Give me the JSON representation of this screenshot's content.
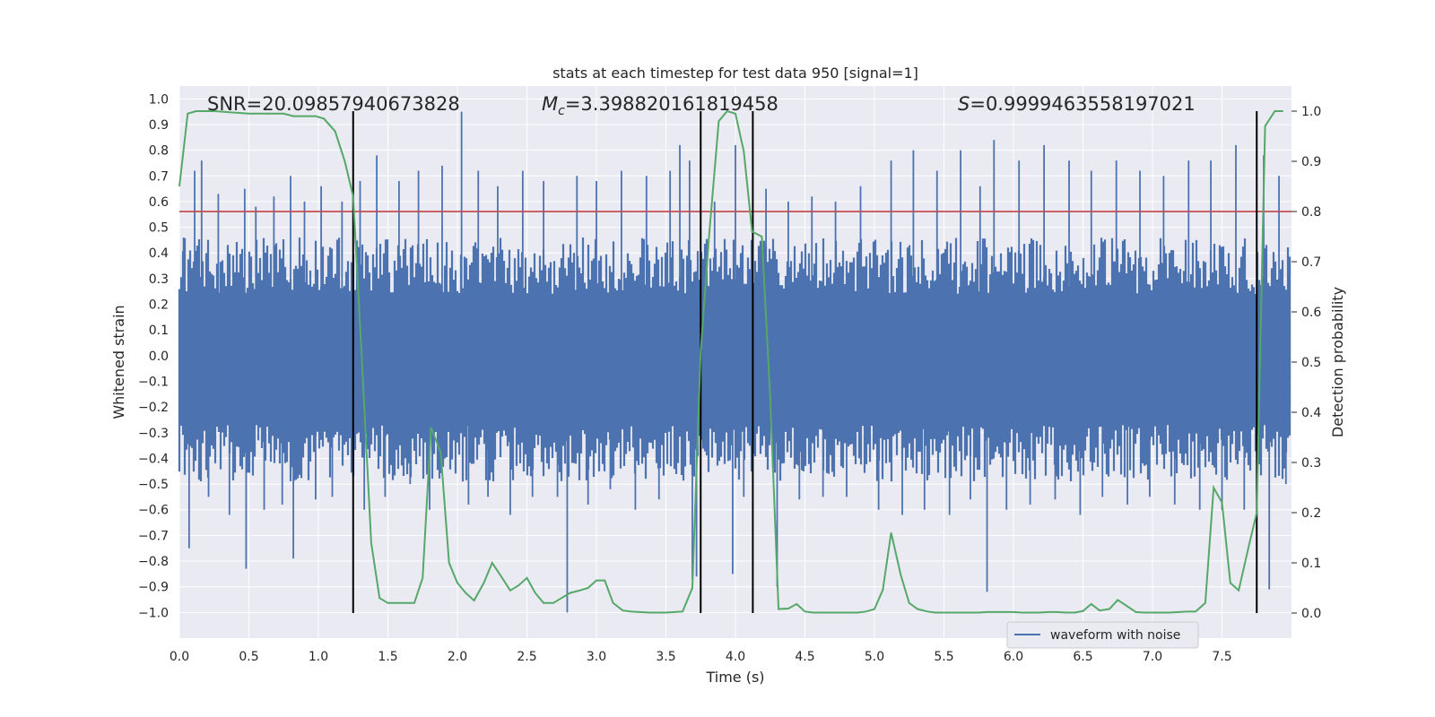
{
  "chart_data": {
    "type": "line",
    "title": "stats at each timestep for test data 950 [signal=1]",
    "xlabel": "Time (s)",
    "ylabel": "Whitened strain",
    "y2label": "Detection probability",
    "xlim": [
      0,
      8
    ],
    "ylim": [
      -1.1,
      1.05
    ],
    "y2lim": [
      -0.05,
      1.05
    ],
    "x_ticks": [
      0.0,
      0.5,
      1.0,
      1.5,
      2.0,
      2.5,
      3.0,
      3.5,
      4.0,
      4.5,
      5.0,
      5.5,
      6.0,
      6.5,
      7.0,
      7.5
    ],
    "x_tick_labels": [
      "0.0",
      "0.5",
      "1.0",
      "1.5",
      "2.0",
      "2.5",
      "3.0",
      "3.5",
      "4.0",
      "4.5",
      "5.0",
      "5.5",
      "6.0",
      "6.5",
      "7.0",
      "7.5"
    ],
    "y_ticks": [
      1.0,
      0.9,
      0.8,
      0.7,
      0.6,
      0.5,
      0.4,
      0.3,
      0.2,
      0.1,
      0.0,
      -0.1,
      -0.2,
      -0.3,
      -0.4,
      -0.5,
      -0.6,
      -0.7,
      -0.8,
      -0.9,
      -1.0
    ],
    "y_tick_labels": [
      "1.0",
      "0.9",
      "0.8",
      "0.7",
      "0.6",
      "0.5",
      "0.4",
      "0.3",
      "0.2",
      "0.1",
      "0.0",
      "−0.1",
      "−0.2",
      "−0.3",
      "−0.4",
      "−0.5",
      "−0.6",
      "−0.7",
      "−0.8",
      "−0.9",
      "−1.0"
    ],
    "y2_ticks": [
      0.0,
      0.1,
      0.2,
      0.3,
      0.4,
      0.5,
      0.6,
      0.7,
      0.8,
      0.9,
      1.0
    ],
    "y2_tick_labels": [
      "0.0",
      "0.1",
      "0.2",
      "0.3",
      "0.4",
      "0.5",
      "0.6",
      "0.7",
      "0.8",
      "0.9",
      "1.0"
    ],
    "grid": true,
    "annotations": {
      "snr": "SNR=20.09857940673828",
      "mc_symbol": "M",
      "mc_sub": "c",
      "mc_value": "=3.398820161819458",
      "s_symbol": "S",
      "s_value": "=0.9999463558197021"
    },
    "threshold": {
      "y2": 0.8,
      "color": "#c44e52"
    },
    "vlines_x": [
      1.25,
      3.75,
      4.125,
      7.75
    ],
    "vline_y2_range": [
      0.0,
      1.0
    ],
    "legend": {
      "placement": "lower-right",
      "entries": [
        "waveform with noise"
      ]
    },
    "colors": {
      "waveform": "#4c72b0",
      "probability": "#55a868",
      "vlines": "#000000",
      "background": "#eaeaf2",
      "grid": "#ffffff"
    },
    "waveform": {
      "name": "waveform with noise",
      "envelope": {
        "upper_mean": 0.35,
        "lower_mean": -0.38
      },
      "spikes": [
        [
          0.03,
          0.46
        ],
        [
          0.07,
          -0.75
        ],
        [
          0.11,
          0.72
        ],
        [
          0.16,
          0.76
        ],
        [
          0.21,
          -0.55
        ],
        [
          0.28,
          0.63
        ],
        [
          0.36,
          -0.62
        ],
        [
          0.47,
          0.65
        ],
        [
          0.48,
          -0.83
        ],
        [
          0.55,
          0.58
        ],
        [
          0.61,
          -0.6
        ],
        [
          0.68,
          0.62
        ],
        [
          0.74,
          -0.58
        ],
        [
          0.8,
          0.7
        ],
        [
          0.82,
          -0.79
        ],
        [
          0.9,
          0.6
        ],
        [
          0.98,
          -0.56
        ],
        [
          1.02,
          0.66
        ],
        [
          1.1,
          -0.55
        ],
        [
          1.17,
          0.6
        ],
        [
          1.3,
          0.68
        ],
        [
          1.33,
          -0.6
        ],
        [
          1.42,
          0.78
        ],
        [
          1.48,
          -0.55
        ],
        [
          1.58,
          0.68
        ],
        [
          1.66,
          -0.5
        ],
        [
          1.72,
          0.72
        ],
        [
          1.8,
          -0.6
        ],
        [
          1.89,
          0.74
        ],
        [
          2.03,
          0.95
        ],
        [
          2.08,
          -0.58
        ],
        [
          2.15,
          0.72
        ],
        [
          2.22,
          -0.55
        ],
        [
          2.29,
          0.66
        ],
        [
          2.38,
          -0.62
        ],
        [
          2.47,
          0.72
        ],
        [
          2.54,
          -0.55
        ],
        [
          2.62,
          0.68
        ],
        [
          2.72,
          -0.55
        ],
        [
          2.79,
          -1.0
        ],
        [
          2.86,
          0.7
        ],
        [
          2.94,
          -0.58
        ],
        [
          3.0,
          0.68
        ],
        [
          3.1,
          -0.52
        ],
        [
          3.18,
          0.72
        ],
        [
          3.28,
          -0.6
        ],
        [
          3.36,
          0.7
        ],
        [
          3.45,
          -0.56
        ],
        [
          3.53,
          0.72
        ],
        [
          3.6,
          0.82
        ],
        [
          3.67,
          0.76
        ],
        [
          3.69,
          -0.87
        ],
        [
          3.72,
          -0.86
        ],
        [
          3.85,
          0.6
        ],
        [
          3.98,
          -0.85
        ],
        [
          4.0,
          0.82
        ],
        [
          4.06,
          -0.55
        ],
        [
          4.22,
          0.65
        ],
        [
          4.3,
          -0.9
        ],
        [
          4.38,
          0.6
        ],
        [
          4.46,
          -0.56
        ],
        [
          4.55,
          0.62
        ],
        [
          4.63,
          -0.55
        ],
        [
          4.72,
          0.6
        ],
        [
          4.8,
          -0.55
        ],
        [
          4.9,
          0.66
        ],
        [
          5.03,
          -0.6
        ],
        [
          5.12,
          0.76
        ],
        [
          5.2,
          -0.62
        ],
        [
          5.28,
          0.8
        ],
        [
          5.36,
          -0.6
        ],
        [
          5.45,
          0.72
        ],
        [
          5.54,
          -0.62
        ],
        [
          5.62,
          0.8
        ],
        [
          5.69,
          -0.56
        ],
        [
          5.76,
          0.66
        ],
        [
          5.81,
          -0.92
        ],
        [
          5.86,
          0.84
        ],
        [
          5.95,
          -0.6
        ],
        [
          6.04,
          0.76
        ],
        [
          6.12,
          -0.58
        ],
        [
          6.22,
          0.82
        ],
        [
          6.3,
          -0.56
        ],
        [
          6.4,
          0.76
        ],
        [
          6.48,
          -0.62
        ],
        [
          6.56,
          0.72
        ],
        [
          6.64,
          -0.55
        ],
        [
          6.74,
          0.76
        ],
        [
          6.82,
          -0.58
        ],
        [
          6.91,
          0.72
        ],
        [
          6.98,
          -0.55
        ],
        [
          7.08,
          0.7
        ],
        [
          7.16,
          -0.58
        ],
        [
          7.26,
          0.76
        ],
        [
          7.34,
          -0.6
        ],
        [
          7.42,
          0.76
        ],
        [
          7.5,
          -0.6
        ],
        [
          7.6,
          0.82
        ],
        [
          7.66,
          -0.6
        ],
        [
          7.8,
          0.78
        ],
        [
          7.84,
          -0.91
        ],
        [
          7.91,
          0.7
        ],
        [
          7.96,
          -0.5
        ]
      ]
    },
    "probability": {
      "x": [
        0.0,
        0.06,
        0.12,
        0.25,
        0.5,
        0.75,
        0.82,
        0.9,
        0.98,
        1.04,
        1.12,
        1.19,
        1.25,
        1.31,
        1.38,
        1.44,
        1.5,
        1.56,
        1.62,
        1.69,
        1.75,
        1.81,
        1.88,
        1.94,
        2.0,
        2.06,
        2.12,
        2.19,
        2.25,
        2.31,
        2.38,
        2.44,
        2.5,
        2.56,
        2.62,
        2.69,
        2.75,
        2.81,
        2.88,
        2.94,
        3.0,
        3.06,
        3.12,
        3.19,
        3.25,
        3.31,
        3.38,
        3.44,
        3.5,
        3.56,
        3.62,
        3.69,
        3.75,
        3.81,
        3.88,
        3.94,
        4.0,
        4.06,
        4.12,
        4.19,
        4.25,
        4.31,
        4.38,
        4.44,
        4.5,
        4.56,
        4.62,
        4.69,
        4.75,
        4.81,
        4.88,
        4.94,
        5.0,
        5.06,
        5.12,
        5.19,
        5.25,
        5.31,
        5.38,
        5.44,
        5.5,
        5.56,
        5.62,
        5.69,
        5.75,
        5.81,
        5.88,
        5.94,
        6.0,
        6.06,
        6.12,
        6.19,
        6.25,
        6.31,
        6.38,
        6.44,
        6.5,
        6.56,
        6.62,
        6.69,
        6.75,
        6.81,
        6.88,
        6.94,
        7.0,
        7.06,
        7.12,
        7.19,
        7.25,
        7.31,
        7.38,
        7.44,
        7.5,
        7.56,
        7.62,
        7.69,
        7.75,
        7.81,
        7.88,
        7.94
      ],
      "y": [
        0.85,
        0.995,
        1.0,
        1.0,
        0.995,
        0.995,
        0.99,
        0.99,
        0.99,
        0.985,
        0.96,
        0.9,
        0.83,
        0.52,
        0.14,
        0.03,
        0.02,
        0.02,
        0.02,
        0.02,
        0.07,
        0.37,
        0.32,
        0.1,
        0.06,
        0.04,
        0.025,
        0.06,
        0.1,
        0.075,
        0.045,
        0.055,
        0.07,
        0.04,
        0.02,
        0.02,
        0.03,
        0.04,
        0.045,
        0.05,
        0.065,
        0.065,
        0.02,
        0.005,
        0.003,
        0.002,
        0.001,
        0.001,
        0.001,
        0.002,
        0.003,
        0.05,
        0.52,
        0.75,
        0.98,
        1.0,
        0.995,
        0.92,
        0.76,
        0.75,
        0.43,
        0.008,
        0.009,
        0.018,
        0.003,
        0.001,
        0.001,
        0.001,
        0.001,
        0.001,
        0.001,
        0.003,
        0.008,
        0.046,
        0.16,
        0.075,
        0.02,
        0.008,
        0.003,
        0.001,
        0.001,
        0.001,
        0.001,
        0.001,
        0.001,
        0.002,
        0.002,
        0.002,
        0.002,
        0.001,
        0.001,
        0.001,
        0.002,
        0.002,
        0.001,
        0.001,
        0.004,
        0.018,
        0.005,
        0.008,
        0.026,
        0.015,
        0.002,
        0.001,
        0.001,
        0.001,
        0.001,
        0.002,
        0.003,
        0.003,
        0.02,
        0.25,
        0.22,
        0.06,
        0.045,
        0.13,
        0.2,
        0.97,
        1.0,
        1.0
      ]
    }
  }
}
